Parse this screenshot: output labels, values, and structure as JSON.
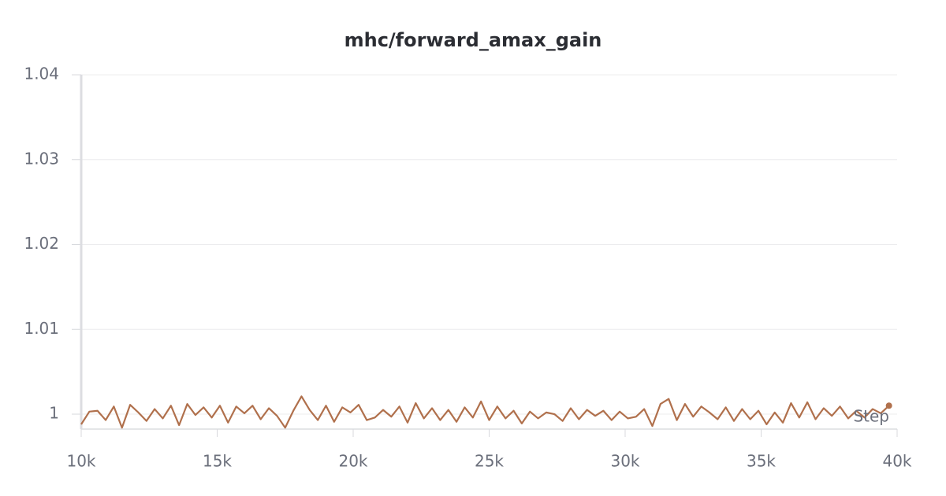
{
  "chart_data": {
    "type": "line",
    "title": "mhc/forward_amax_gain",
    "x_label": "Step",
    "x": [
      10000,
      10300,
      10600,
      10900,
      11200,
      11500,
      11800,
      12100,
      12400,
      12700,
      13000,
      13300,
      13600,
      13900,
      14200,
      14500,
      14800,
      15100,
      15400,
      15700,
      16000,
      16300,
      16600,
      16900,
      17200,
      17500,
      17800,
      18100,
      18400,
      18700,
      19000,
      19300,
      19600,
      19900,
      20200,
      20500,
      20800,
      21100,
      21400,
      21700,
      22000,
      22300,
      22600,
      22900,
      23200,
      23500,
      23800,
      24100,
      24400,
      24700,
      25000,
      25300,
      25600,
      25900,
      26200,
      26500,
      26800,
      27100,
      27400,
      27700,
      28000,
      28300,
      28600,
      28900,
      29200,
      29500,
      29800,
      30100,
      30400,
      30700,
      31000,
      31300,
      31600,
      31900,
      32200,
      32500,
      32800,
      33100,
      33400,
      33700,
      34000,
      34300,
      34600,
      34900,
      35200,
      35500,
      35800,
      36100,
      36400,
      36700,
      37000,
      37300,
      37600,
      37900,
      38200,
      38500,
      38800,
      39100,
      39400,
      39700
    ],
    "series": [
      {
        "color": "#b0704c",
        "values": [
          0.9988,
          1.0003,
          1.0004,
          0.9993,
          1.0009,
          0.9984,
          1.0011,
          1.0002,
          0.9992,
          1.0006,
          0.9995,
          1.001,
          0.9987,
          1.0012,
          0.9999,
          1.0008,
          0.9996,
          1.001,
          0.999,
          1.0009,
          1.0001,
          1.001,
          0.9994,
          1.0007,
          0.9998,
          0.9984,
          1.0004,
          1.0021,
          1.0005,
          0.9993,
          1.001,
          0.9991,
          1.0008,
          1.0002,
          1.0011,
          0.9993,
          0.9996,
          1.0005,
          0.9997,
          1.0009,
          0.999,
          1.0013,
          0.9995,
          1.0007,
          0.9993,
          1.0005,
          0.9991,
          1.0008,
          0.9996,
          1.0015,
          0.9993,
          1.0009,
          0.9995,
          1.0004,
          0.9989,
          1.0003,
          0.9995,
          1.0002,
          1.0,
          0.9992,
          1.0007,
          0.9994,
          1.0005,
          0.9998,
          1.0004,
          0.9993,
          1.0003,
          0.9995,
          0.9997,
          1.0006,
          0.9986,
          1.0012,
          1.0018,
          0.9993,
          1.0012,
          0.9997,
          1.0009,
          1.0002,
          0.9994,
          1.0008,
          0.9992,
          1.0006,
          0.9994,
          1.0004,
          0.9988,
          1.0002,
          0.999,
          1.0013,
          0.9996,
          1.0014,
          0.9994,
          1.0007,
          0.9998,
          1.0009,
          0.9995,
          1.0004,
          0.9996,
          1.0006,
          1.0001,
          1.001
        ]
      }
    ],
    "xlim": [
      10000,
      40000
    ],
    "xticks": [
      {
        "value": 10000,
        "label": "10k"
      },
      {
        "value": 15000,
        "label": "15k"
      },
      {
        "value": 20000,
        "label": "20k"
      },
      {
        "value": 25000,
        "label": "25k"
      },
      {
        "value": 30000,
        "label": "30k"
      },
      {
        "value": 35000,
        "label": "35k"
      },
      {
        "value": 40000,
        "label": "40k"
      }
    ],
    "ylim": [
      0.99824,
      1.04
    ],
    "yticks": [
      1,
      1.01,
      1.02,
      1.03,
      1.04
    ],
    "grid": true
  }
}
